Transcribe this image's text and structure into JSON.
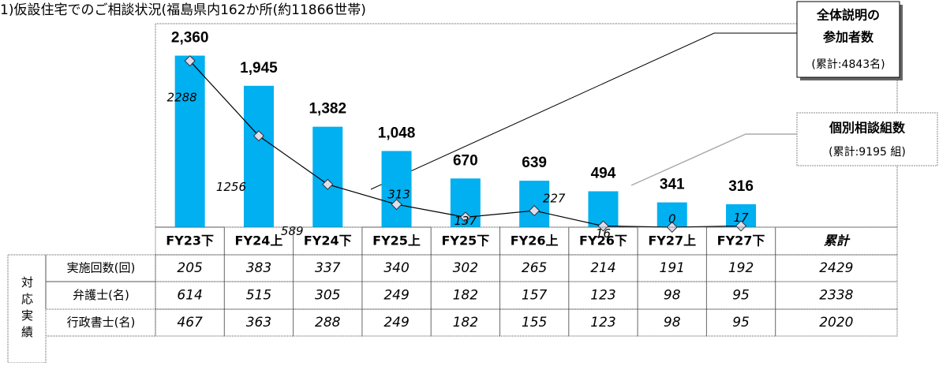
{
  "chart_data": {
    "type": "bar",
    "title": "1)仮設住宅でのご相談状況(福島県内162か所(約11866世帯)",
    "categories": [
      "FY23下",
      "FY24上",
      "FY24下",
      "FY25上",
      "FY25下",
      "FY26上",
      "FY26下",
      "FY27上",
      "FY27下"
    ],
    "ylim": [
      0,
      2800
    ],
    "series": [
      {
        "type": "bar",
        "color": "#00b0f0",
        "values": [
          2360,
          1945,
          1382,
          1048,
          670,
          639,
          494,
          341,
          316
        ],
        "value_labels": [
          "2,360",
          "1,945",
          "1,382",
          "1,048",
          "670",
          "639",
          "494",
          "341",
          "316"
        ]
      },
      {
        "type": "line",
        "color": "#000000",
        "values": [
          2288,
          1256,
          589,
          313,
          137,
          227,
          16,
          0,
          17
        ]
      }
    ],
    "annotations": [
      {
        "lines": [
          "全体説明の",
          "参加者数"
        ],
        "total": "(累計:4843名)"
      },
      {
        "lines": [
          "個別相談組数"
        ],
        "total": "(累計:9195 組)"
      }
    ]
  },
  "table": {
    "total_header": "累計",
    "group_label": "対応実績",
    "rows": [
      {
        "label": "実施回数(回)",
        "values": [
          205,
          383,
          337,
          340,
          302,
          265,
          214,
          191,
          192
        ],
        "total": 2429
      },
      {
        "label": "弁護士(名)",
        "values": [
          614,
          515,
          305,
          249,
          182,
          157,
          123,
          98,
          95
        ],
        "total": 2338
      },
      {
        "label": "行政書士(名)",
        "values": [
          467,
          363,
          288,
          249,
          182,
          155,
          123,
          98,
          95
        ],
        "total": 2020
      }
    ]
  }
}
